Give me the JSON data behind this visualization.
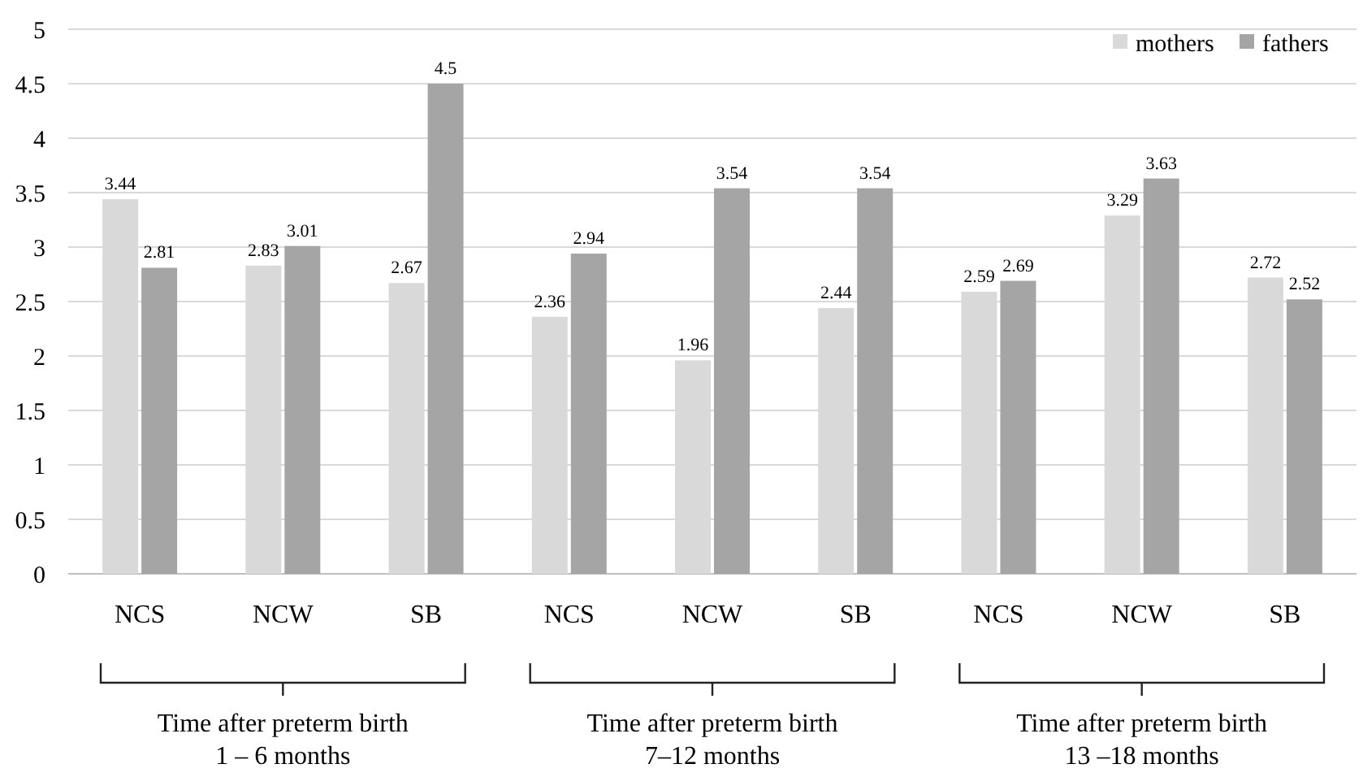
{
  "chart_data": {
    "type": "bar",
    "categories": [
      "NCS",
      "NCW",
      "SB",
      "NCS",
      "NCW",
      "SB",
      "NCS",
      "NCW",
      "SB"
    ],
    "series": [
      {
        "name": "mothers",
        "color": "#d9d9d9",
        "values": [
          3.44,
          2.83,
          2.67,
          2.36,
          1.96,
          2.44,
          2.59,
          3.29,
          2.72
        ]
      },
      {
        "name": "fathers",
        "color": "#a5a5a5",
        "values": [
          2.81,
          3.01,
          4.5,
          2.94,
          3.54,
          3.54,
          2.69,
          3.63,
          2.52
        ]
      }
    ],
    "ylim": [
      0,
      5
    ],
    "yticks": [
      0,
      0.5,
      1,
      1.5,
      2,
      2.5,
      3,
      3.5,
      4,
      4.5,
      5
    ],
    "grid": "y",
    "legend": "top right",
    "data_labels": true,
    "annotations": [
      "Time after preterm birth\n1 – 6 months",
      "Time after preterm birth\n7–12 months",
      "Time after preterm birth\n13 –18 months"
    ]
  }
}
